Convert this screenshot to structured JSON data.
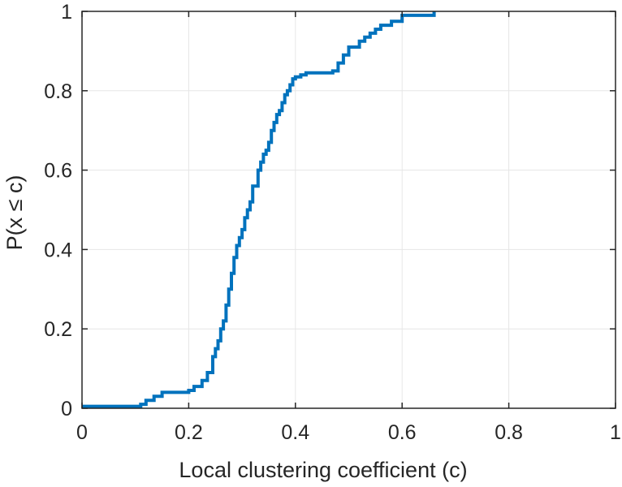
{
  "chart_data": {
    "type": "line",
    "title": "",
    "xlabel": "Local clustering coefficient (c)",
    "ylabel": "P(x ≤ c)",
    "xlim": [
      0,
      1
    ],
    "ylim": [
      0,
      1
    ],
    "xticks": [
      0,
      0.2,
      0.4,
      0.6,
      0.8,
      1
    ],
    "xtick_labels": [
      "0",
      "0.2",
      "0.4",
      "0.6",
      "0.8",
      "1"
    ],
    "yticks": [
      0,
      0.2,
      0.4,
      0.6,
      0.8,
      1
    ],
    "ytick_labels": [
      "0",
      "0.2",
      "0.4",
      "0.6",
      "0.8",
      "1"
    ],
    "grid": true,
    "line_color": "#0072bd",
    "series": [
      {
        "step": true,
        "x": [
          0,
          0.11,
          0.12,
          0.135,
          0.15,
          0.2,
          0.21,
          0.225,
          0.235,
          0.245,
          0.25,
          0.255,
          0.26,
          0.265,
          0.27,
          0.275,
          0.28,
          0.285,
          0.29,
          0.295,
          0.3,
          0.305,
          0.31,
          0.315,
          0.32,
          0.33,
          0.335,
          0.34,
          0.345,
          0.35,
          0.355,
          0.36,
          0.365,
          0.37,
          0.375,
          0.38,
          0.385,
          0.39,
          0.395,
          0.4,
          0.41,
          0.42,
          0.445,
          0.47,
          0.48,
          0.49,
          0.5,
          0.52,
          0.53,
          0.54,
          0.55,
          0.56,
          0.58,
          0.6,
          0.66
        ],
        "y": [
          0.005,
          0.01,
          0.02,
          0.03,
          0.04,
          0.045,
          0.055,
          0.07,
          0.09,
          0.13,
          0.15,
          0.17,
          0.2,
          0.22,
          0.26,
          0.3,
          0.34,
          0.38,
          0.41,
          0.43,
          0.45,
          0.48,
          0.5,
          0.52,
          0.56,
          0.6,
          0.62,
          0.64,
          0.65,
          0.67,
          0.7,
          0.72,
          0.74,
          0.75,
          0.77,
          0.79,
          0.8,
          0.815,
          0.83,
          0.835,
          0.84,
          0.845,
          0.845,
          0.85,
          0.87,
          0.89,
          0.91,
          0.925,
          0.935,
          0.945,
          0.955,
          0.965,
          0.975,
          0.99,
          1.0
        ]
      }
    ]
  }
}
